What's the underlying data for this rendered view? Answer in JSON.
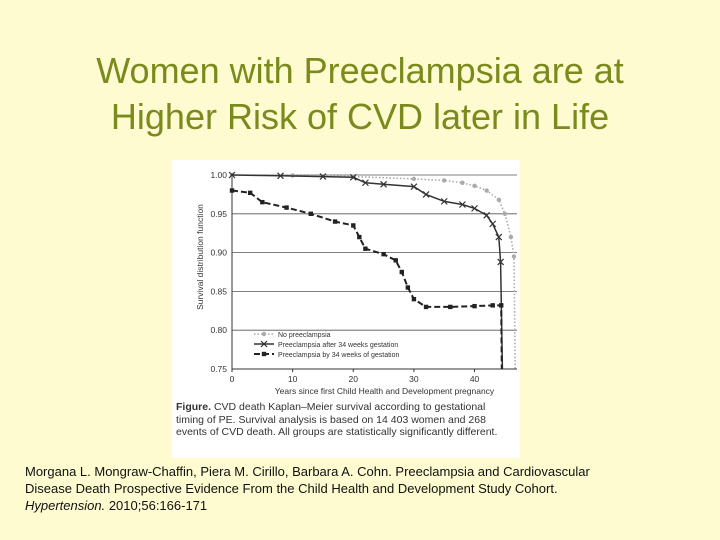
{
  "slide": {
    "title_line1": "Women with Preeclampsia are at",
    "title_line2": "Higher Risk of CVD later in Life"
  },
  "figure_caption": {
    "label": "Figure.",
    "text": "CVD death Kaplan–Meier survival according to gestational timing of PE. Survival analysis is based on 14 403 women and 268 events of CVD death. All groups are statistically significantly different."
  },
  "citation": {
    "line1": "Morgana L. Mongraw-Chaffin, Piera M. Cirillo, Barbara A. Cohn. Preeclampsia and Cardiovascular",
    "line2": "Disease Death Prospective Evidence From the Child Health and Development Study Cohort.",
    "journal": "Hypertension.",
    "details": " 2010;56:166-171"
  },
  "chart_data": {
    "type": "line",
    "title": "",
    "xlabel": "Years since first Child Health and Development pregnancy",
    "ylabel": "Survival distribution function",
    "xlim": [
      0,
      47
    ],
    "ylim": [
      0.75,
      1.0
    ],
    "x_ticks": [
      0,
      10,
      20,
      30,
      40
    ],
    "y_ticks": [
      1.0,
      0.95,
      0.9,
      0.85,
      0.8,
      0.75
    ],
    "y_tick_labels": [
      "1.00",
      "0.95",
      "0.90",
      "0.85",
      "0.80",
      "0.75"
    ],
    "grid": "horizontal",
    "legend_position": "bottom-left",
    "colors": {
      "no_preeclampsia": "#aaaaaa",
      "after_34": "#333333",
      "by_34": "#222222"
    },
    "series": [
      {
        "name": "No preeclampsia",
        "style": "dotted",
        "marker": "circle",
        "points": [
          [
            0,
            1.0
          ],
          [
            10,
            0.9995
          ],
          [
            20,
            0.998
          ],
          [
            30,
            0.995
          ],
          [
            35,
            0.993
          ],
          [
            38,
            0.99
          ],
          [
            40,
            0.986
          ],
          [
            42,
            0.98
          ],
          [
            44,
            0.968
          ],
          [
            45,
            0.95
          ],
          [
            46,
            0.92
          ],
          [
            46.5,
            0.895
          ],
          [
            46.7,
            0.75
          ]
        ]
      },
      {
        "name": "Preeclampsia after 34 weeks gestation",
        "style": "solid",
        "marker": "x",
        "points": [
          [
            0,
            1.0
          ],
          [
            8,
            0.999
          ],
          [
            15,
            0.998
          ],
          [
            20,
            0.997
          ],
          [
            22,
            0.99
          ],
          [
            25,
            0.988
          ],
          [
            30,
            0.985
          ],
          [
            32,
            0.975
          ],
          [
            35,
            0.966
          ],
          [
            38,
            0.962
          ],
          [
            40,
            0.957
          ],
          [
            42,
            0.948
          ],
          [
            43,
            0.937
          ],
          [
            44,
            0.92
          ],
          [
            44.3,
            0.888
          ],
          [
            44.6,
            0.75
          ]
        ]
      },
      {
        "name": "Preeclampsia by 34 weeks of gestation",
        "style": "dashed",
        "marker": "square",
        "points": [
          [
            0,
            0.98
          ],
          [
            3,
            0.977
          ],
          [
            5,
            0.965
          ],
          [
            9,
            0.958
          ],
          [
            13,
            0.95
          ],
          [
            17,
            0.94
          ],
          [
            20,
            0.935
          ],
          [
            21,
            0.92
          ],
          [
            22,
            0.905
          ],
          [
            25,
            0.898
          ],
          [
            27,
            0.89
          ],
          [
            28,
            0.875
          ],
          [
            29,
            0.855
          ],
          [
            30,
            0.84
          ],
          [
            32,
            0.83
          ],
          [
            36,
            0.83
          ],
          [
            40,
            0.831
          ],
          [
            43,
            0.832
          ],
          [
            44.4,
            0.832
          ],
          [
            44.5,
            0.75
          ]
        ]
      }
    ]
  }
}
